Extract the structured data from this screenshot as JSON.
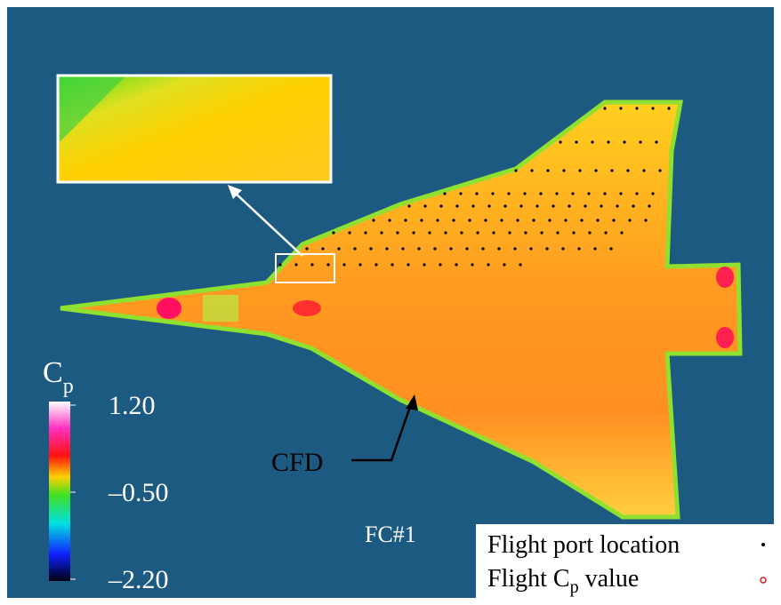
{
  "colorbar": {
    "title": {
      "symbol": "C",
      "subscript": "p"
    },
    "ticks": [
      {
        "value": 1.2,
        "label": "1.20"
      },
      {
        "value": -0.5,
        "label": "–0.50"
      },
      {
        "value": -2.2,
        "label": "–2.20"
      }
    ]
  },
  "annotations": {
    "cfd": "CFD",
    "condition": "FC#1"
  },
  "legend": {
    "port": "Flight port location",
    "value_prefix": "Flight",
    "value_symbol": "C",
    "value_subscript": "p",
    "value_suffix": "value"
  }
}
